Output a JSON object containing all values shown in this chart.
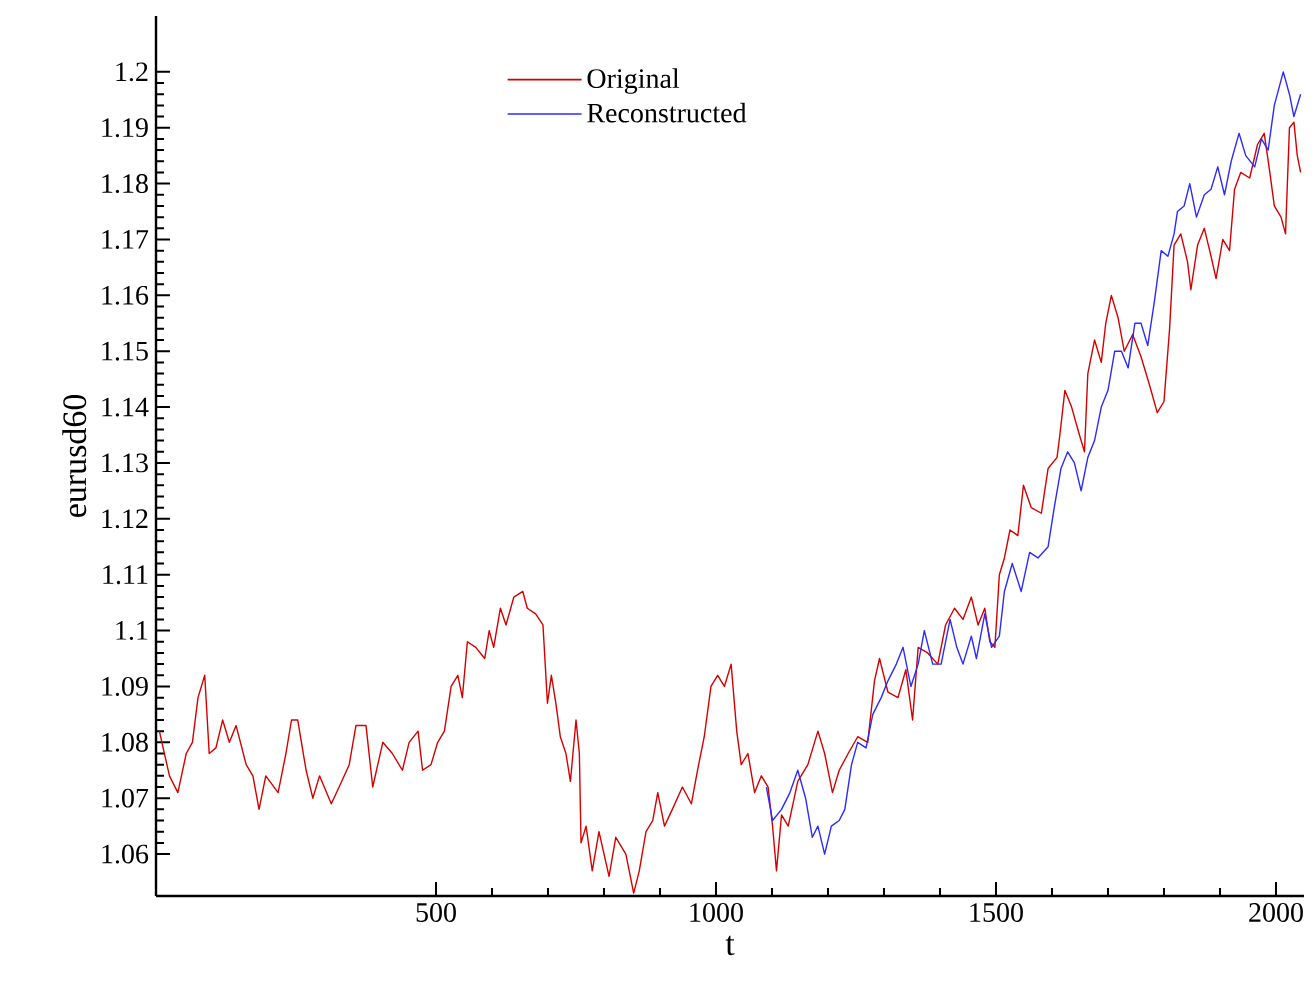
{
  "chart_data": {
    "type": "line",
    "xlabel": "t",
    "ylabel": "eurusd60",
    "xlim": [
      0,
      2050
    ],
    "ylim": [
      1.0525,
      1.21
    ],
    "xticks": [
      500,
      1000,
      1500,
      2000
    ],
    "yticks": [
      1.06,
      1.07,
      1.08,
      1.09,
      1.1,
      1.11,
      1.12,
      1.13,
      1.14,
      1.15,
      1.16,
      1.17,
      1.18,
      1.19,
      1.2
    ],
    "legend": "top",
    "grid": false,
    "marker": "none",
    "line_style": "solid",
    "series": [
      {
        "name": "Original",
        "color": "#d40000",
        "x": [
          6,
          24,
          39,
          54,
          65,
          75,
          87,
          95,
          107,
          119,
          131,
          143,
          161,
          173,
          184,
          196,
          218,
          232,
          242,
          253,
          268,
          280,
          292,
          313,
          327,
          345,
          357,
          375,
          387,
          405,
          422,
          440,
          452,
          468,
          476,
          491,
          503,
          515,
          527,
          539,
          547,
          556,
          571,
          587,
          595,
          603,
          615,
          625,
          639,
          655,
          663,
          678,
          691,
          699,
          706,
          714,
          722,
          732,
          740,
          750,
          756,
          759,
          768,
          779,
          791,
          809,
          821,
          839,
          853,
          863,
          875,
          887,
          896,
          908,
          922,
          940,
          956,
          967,
          979,
          991,
          1003,
          1015,
          1027,
          1037,
          1045,
          1057,
          1069,
          1081,
          1093,
          1101,
          1108,
          1117,
          1129,
          1146,
          1164,
          1182,
          1194,
          1208,
          1220,
          1236,
          1253,
          1271,
          1283,
          1292,
          1307,
          1325,
          1339,
          1351,
          1361,
          1378,
          1396,
          1410,
          1426,
          1441,
          1456,
          1468,
          1480,
          1489,
          1498,
          1506,
          1515,
          1525,
          1539,
          1549,
          1563,
          1581,
          1593,
          1609,
          1614,
          1623,
          1635,
          1649,
          1658,
          1664,
          1676,
          1688,
          1696,
          1706,
          1718,
          1729,
          1744,
          1759,
          1774,
          1788,
          1800,
          1810,
          1818,
          1830,
          1842,
          1848,
          1860,
          1872,
          1884,
          1893,
          1905,
          1917,
          1926,
          1937,
          1953,
          1967,
          1979,
          1989,
          1997,
          2009,
          2017,
          2024,
          2032,
          2038,
          2044
        ],
        "values": [
          1.082,
          1.074,
          1.071,
          1.078,
          1.08,
          1.088,
          1.092,
          1.078,
          1.079,
          1.084,
          1.08,
          1.083,
          1.076,
          1.074,
          1.068,
          1.074,
          1.071,
          1.078,
          1.084,
          1.084,
          1.075,
          1.07,
          1.074,
          1.069,
          1.072,
          1.076,
          1.083,
          1.083,
          1.072,
          1.08,
          1.078,
          1.075,
          1.08,
          1.082,
          1.075,
          1.076,
          1.08,
          1.082,
          1.09,
          1.092,
          1.088,
          1.098,
          1.097,
          1.095,
          1.1,
          1.097,
          1.104,
          1.101,
          1.106,
          1.107,
          1.104,
          1.103,
          1.101,
          1.087,
          1.092,
          1.087,
          1.081,
          1.078,
          1.073,
          1.084,
          1.078,
          1.062,
          1.065,
          1.057,
          1.064,
          1.056,
          1.063,
          1.06,
          1.053,
          1.057,
          1.064,
          1.066,
          1.071,
          1.065,
          1.068,
          1.072,
          1.069,
          1.075,
          1.081,
          1.09,
          1.092,
          1.09,
          1.094,
          1.082,
          1.076,
          1.078,
          1.071,
          1.074,
          1.072,
          1.065,
          1.057,
          1.067,
          1.065,
          1.073,
          1.076,
          1.082,
          1.078,
          1.071,
          1.075,
          1.078,
          1.081,
          1.08,
          1.091,
          1.095,
          1.089,
          1.088,
          1.093,
          1.084,
          1.097,
          1.096,
          1.094,
          1.101,
          1.104,
          1.102,
          1.106,
          1.101,
          1.104,
          1.098,
          1.097,
          1.11,
          1.113,
          1.118,
          1.117,
          1.126,
          1.122,
          1.121,
          1.129,
          1.131,
          1.135,
          1.143,
          1.14,
          1.135,
          1.132,
          1.146,
          1.152,
          1.148,
          1.155,
          1.16,
          1.156,
          1.15,
          1.153,
          1.149,
          1.144,
          1.139,
          1.141,
          1.154,
          1.169,
          1.171,
          1.166,
          1.161,
          1.169,
          1.172,
          1.167,
          1.163,
          1.17,
          1.168,
          1.179,
          1.182,
          1.181,
          1.187,
          1.189,
          1.182,
          1.176,
          1.174,
          1.171,
          1.19,
          1.191,
          1.185,
          1.182
        ]
      },
      {
        "name": "Reconstructed",
        "color": "#2b2bff",
        "x": [
          1090,
          1101,
          1117,
          1132,
          1146,
          1160,
          1172,
          1182,
          1194,
          1206,
          1220,
          1230,
          1242,
          1253,
          1268,
          1280,
          1295,
          1307,
          1322,
          1334,
          1348,
          1361,
          1372,
          1387,
          1402,
          1418,
          1430,
          1441,
          1456,
          1465,
          1480,
          1492,
          1506,
          1515,
          1529,
          1545,
          1560,
          1575,
          1593,
          1604,
          1616,
          1628,
          1640,
          1652,
          1664,
          1676,
          1688,
          1700,
          1712,
          1724,
          1736,
          1748,
          1759,
          1771,
          1783,
          1795,
          1807,
          1818,
          1824,
          1836,
          1846,
          1858,
          1872,
          1884,
          1896,
          1908,
          1920,
          1934,
          1946,
          1962,
          1974,
          1986,
          1997,
          2013,
          2024,
          2032,
          2044
        ],
        "values": [
          1.072,
          1.066,
          1.068,
          1.071,
          1.075,
          1.07,
          1.063,
          1.065,
          1.06,
          1.065,
          1.066,
          1.068,
          1.076,
          1.08,
          1.079,
          1.085,
          1.088,
          1.091,
          1.094,
          1.097,
          1.09,
          1.094,
          1.1,
          1.094,
          1.094,
          1.102,
          1.097,
          1.094,
          1.099,
          1.095,
          1.103,
          1.097,
          1.099,
          1.107,
          1.112,
          1.107,
          1.114,
          1.113,
          1.115,
          1.122,
          1.129,
          1.132,
          1.13,
          1.125,
          1.131,
          1.134,
          1.14,
          1.143,
          1.15,
          1.15,
          1.147,
          1.155,
          1.155,
          1.151,
          1.159,
          1.168,
          1.167,
          1.171,
          1.175,
          1.176,
          1.18,
          1.174,
          1.178,
          1.179,
          1.183,
          1.178,
          1.184,
          1.189,
          1.185,
          1.183,
          1.188,
          1.186,
          1.194,
          1.2,
          1.196,
          1.192,
          1.196
        ]
      }
    ]
  }
}
